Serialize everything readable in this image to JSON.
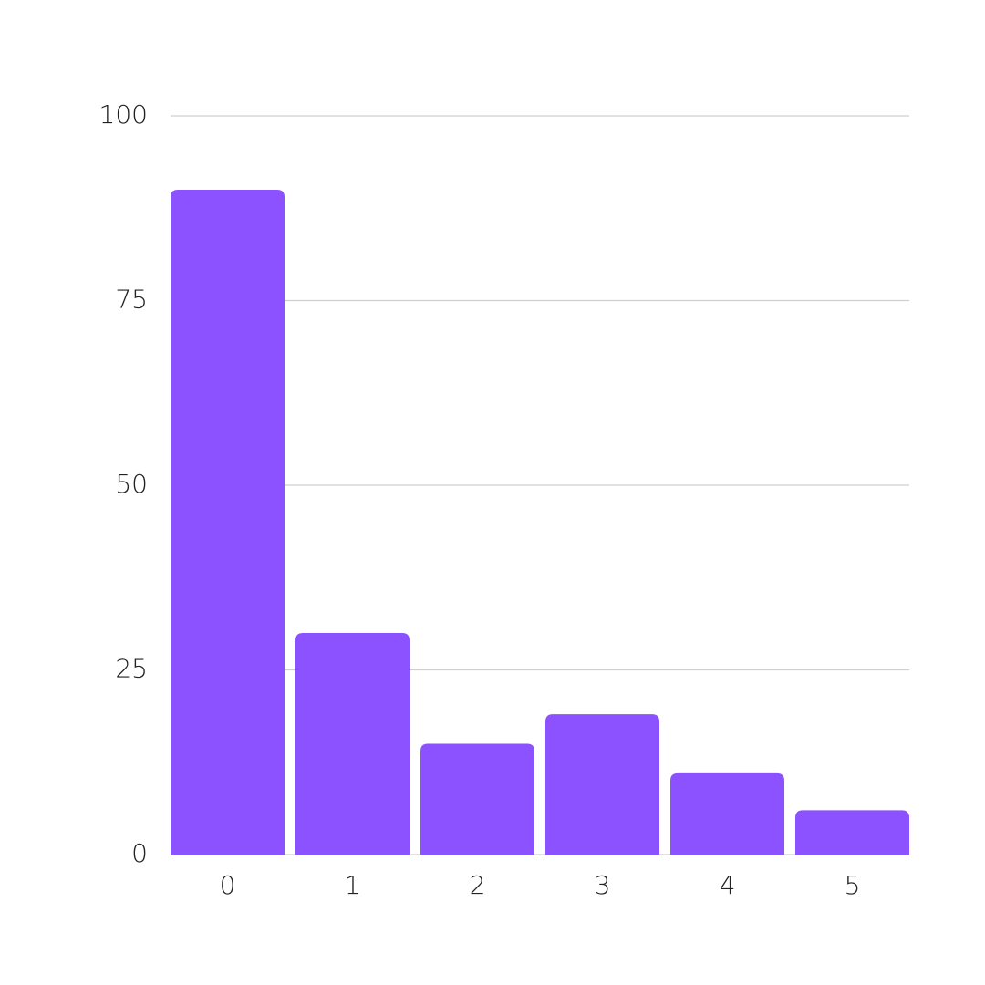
{
  "chart_data": {
    "type": "bar",
    "categories": [
      "0",
      "1",
      "2",
      "3",
      "4",
      "5"
    ],
    "values": [
      90,
      30,
      15,
      19,
      11,
      6
    ],
    "color": "#8c52ff",
    "ylim": [
      0,
      100
    ],
    "yticks": [
      0,
      25,
      50,
      75,
      100
    ],
    "grid": true
  }
}
